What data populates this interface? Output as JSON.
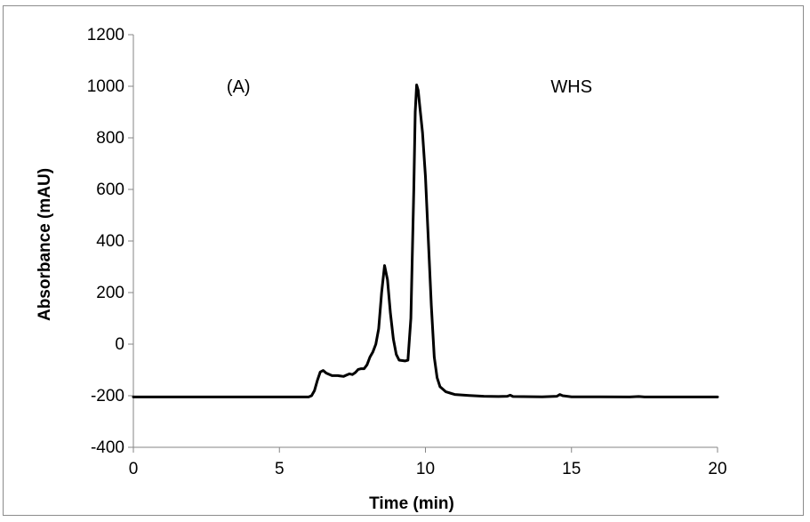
{
  "chart_data": {
    "type": "line",
    "title": "",
    "xlabel": "Time (min)",
    "ylabel": "Absorbance (mAU)",
    "xlim": [
      0,
      20
    ],
    "ylim": [
      -400,
      1200
    ],
    "x_ticks": [
      0,
      5,
      10,
      15,
      20
    ],
    "y_ticks": [
      -400,
      -200,
      0,
      200,
      400,
      600,
      800,
      1000,
      1200
    ],
    "x_tick_labels": [
      "0",
      "5",
      "10",
      "15",
      "20"
    ],
    "y_tick_labels": [
      "-400",
      "-200",
      "0",
      "200",
      "400",
      "600",
      "800",
      "1000",
      "1200"
    ],
    "grid": false,
    "legend": "none",
    "annotations": [
      {
        "text": "(A)",
        "x": 3.6,
        "y": 1000
      },
      {
        "text": "WHS",
        "x": 15.0,
        "y": 1000
      }
    ],
    "series": [
      {
        "color": "#000000",
        "points": [
          [
            0.0,
            -205
          ],
          [
            2.0,
            -205
          ],
          [
            4.0,
            -205
          ],
          [
            5.5,
            -205
          ],
          [
            6.0,
            -205
          ],
          [
            6.1,
            -200
          ],
          [
            6.2,
            -180
          ],
          [
            6.3,
            -140
          ],
          [
            6.4,
            -108
          ],
          [
            6.5,
            -102
          ],
          [
            6.6,
            -112
          ],
          [
            6.8,
            -122
          ],
          [
            7.0,
            -122
          ],
          [
            7.2,
            -125
          ],
          [
            7.3,
            -120
          ],
          [
            7.4,
            -115
          ],
          [
            7.5,
            -118
          ],
          [
            7.6,
            -110
          ],
          [
            7.7,
            -98
          ],
          [
            7.8,
            -95
          ],
          [
            7.9,
            -95
          ],
          [
            8.0,
            -80
          ],
          [
            8.1,
            -50
          ],
          [
            8.2,
            -30
          ],
          [
            8.3,
            0
          ],
          [
            8.4,
            60
          ],
          [
            8.5,
            200
          ],
          [
            8.6,
            305
          ],
          [
            8.7,
            250
          ],
          [
            8.8,
            120
          ],
          [
            8.9,
            20
          ],
          [
            9.0,
            -40
          ],
          [
            9.1,
            -62
          ],
          [
            9.3,
            -65
          ],
          [
            9.4,
            -62
          ],
          [
            9.5,
            100
          ],
          [
            9.6,
            600
          ],
          [
            9.65,
            900
          ],
          [
            9.7,
            1005
          ],
          [
            9.75,
            985
          ],
          [
            9.8,
            930
          ],
          [
            9.9,
            820
          ],
          [
            10.0,
            650
          ],
          [
            10.1,
            400
          ],
          [
            10.2,
            150
          ],
          [
            10.3,
            -50
          ],
          [
            10.4,
            -130
          ],
          [
            10.5,
            -165
          ],
          [
            10.7,
            -185
          ],
          [
            11.0,
            -195
          ],
          [
            11.5,
            -199
          ],
          [
            12.0,
            -202
          ],
          [
            12.5,
            -203
          ],
          [
            12.8,
            -202
          ],
          [
            12.9,
            -198
          ],
          [
            13.0,
            -203
          ],
          [
            14.0,
            -204
          ],
          [
            14.5,
            -202
          ],
          [
            14.6,
            -195
          ],
          [
            14.7,
            -200
          ],
          [
            15.0,
            -204
          ],
          [
            16.0,
            -204
          ],
          [
            17.0,
            -205
          ],
          [
            17.3,
            -203
          ],
          [
            17.5,
            -205
          ],
          [
            18.0,
            -205
          ],
          [
            19.0,
            -205
          ],
          [
            20.0,
            -205
          ]
        ]
      }
    ]
  }
}
